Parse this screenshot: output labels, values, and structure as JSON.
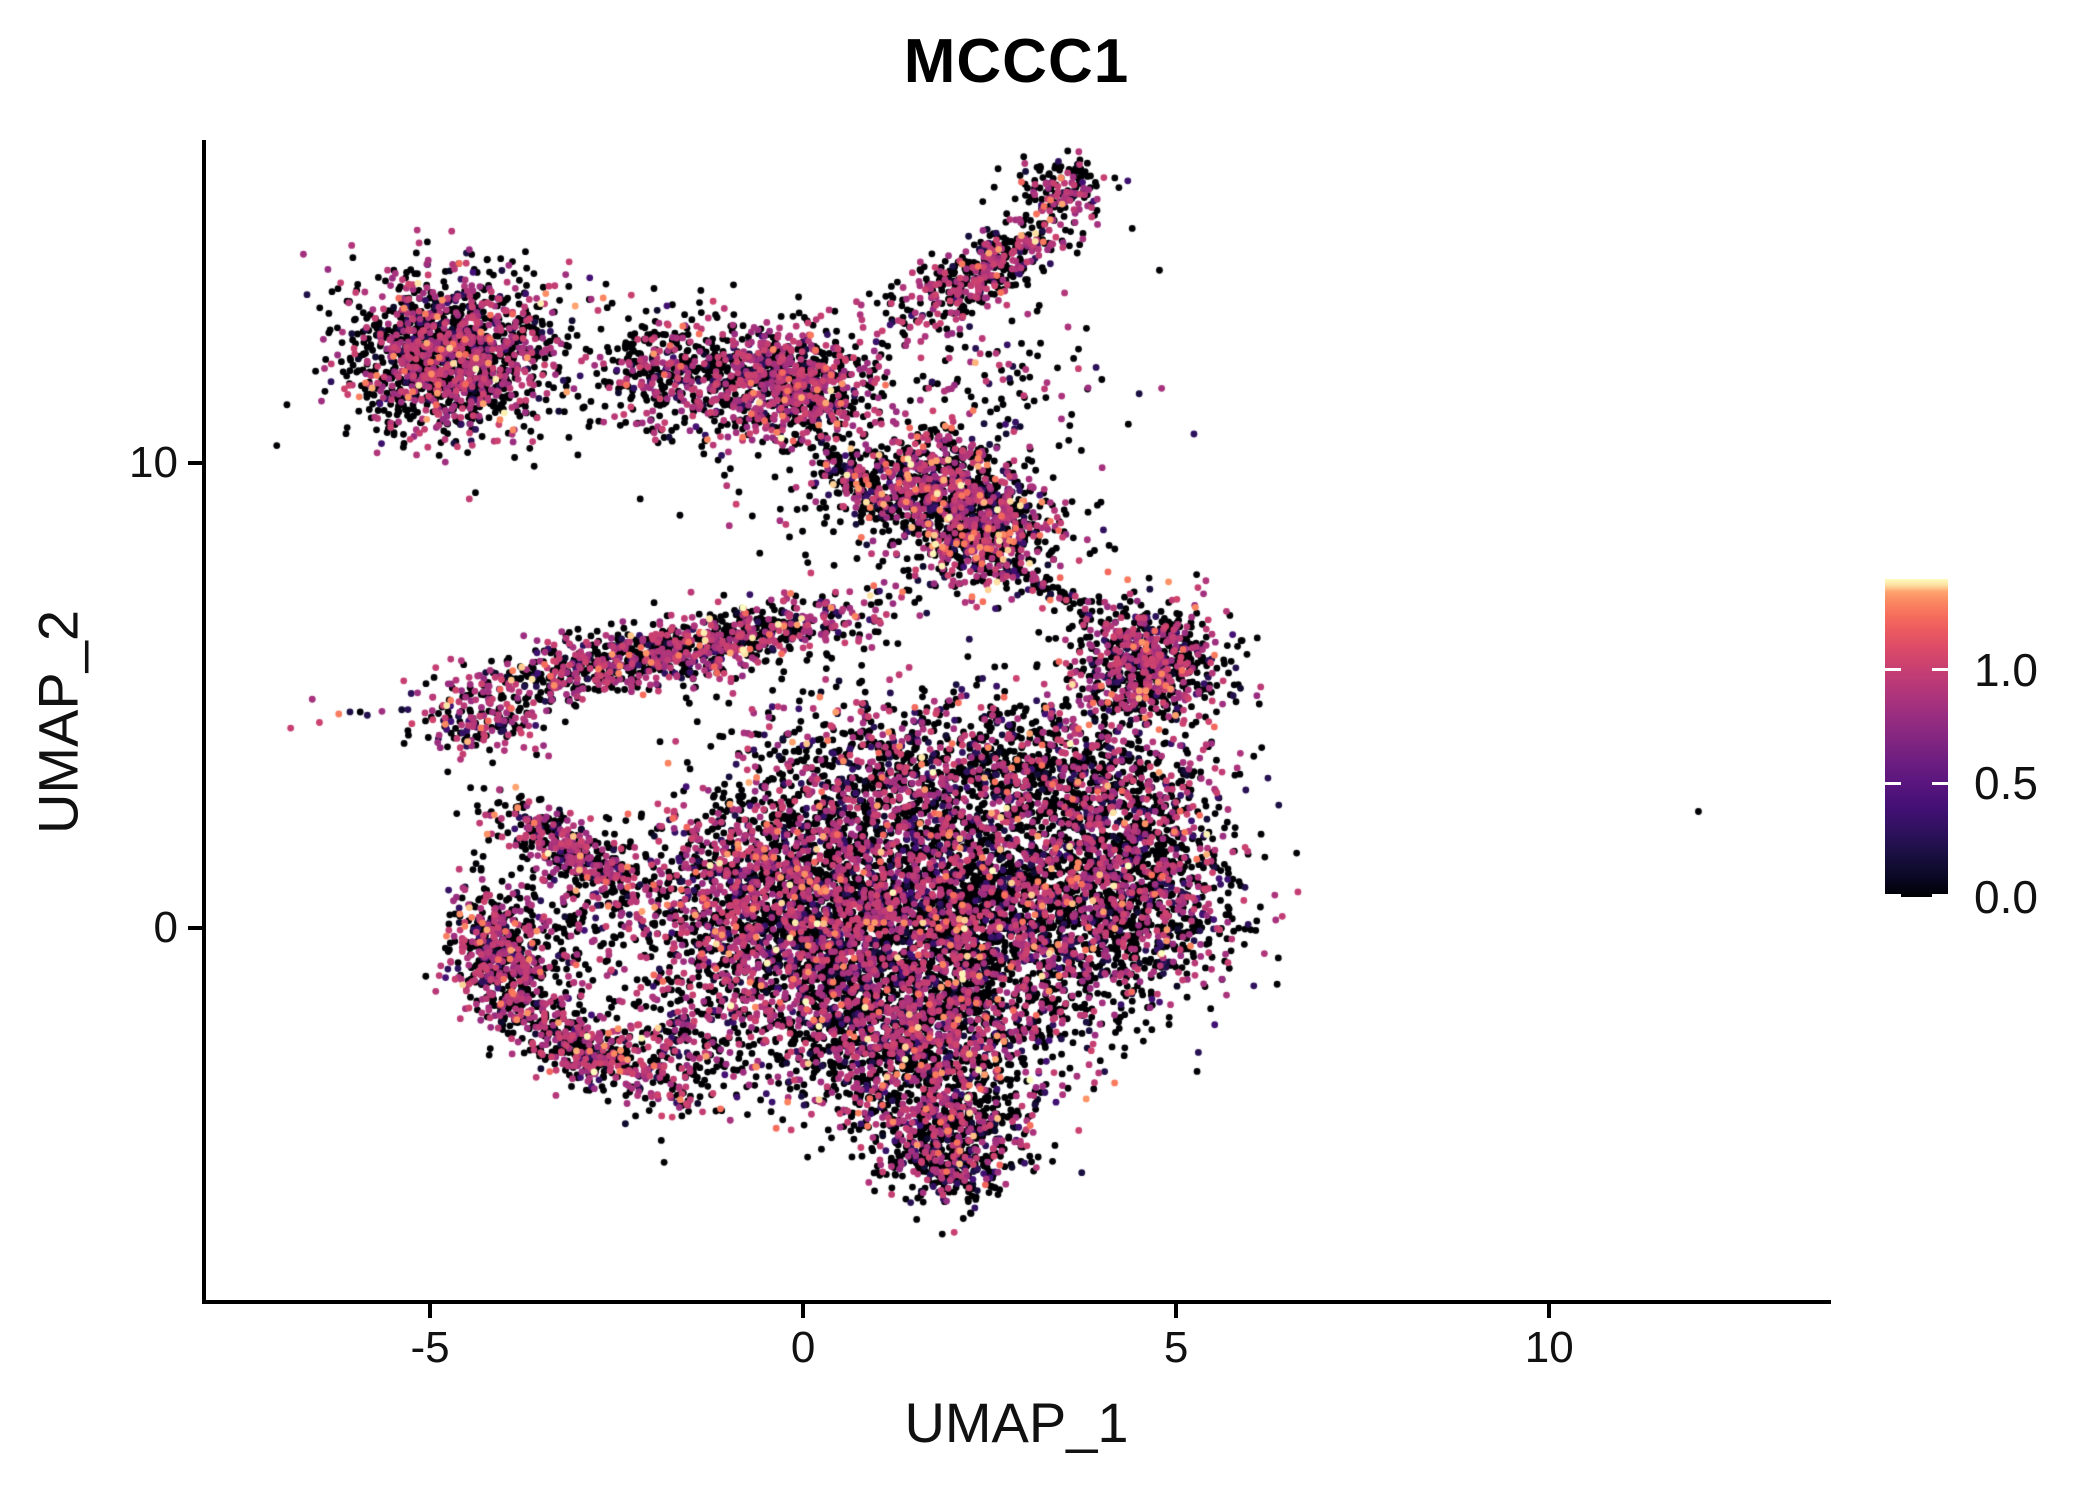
{
  "title": "MCCC1",
  "axes": {
    "x_label": "UMAP_1",
    "y_label": "UMAP_2",
    "x_tick_labels": [
      "-5",
      "0",
      "5",
      "10"
    ],
    "y_tick_labels": [
      "0",
      "10"
    ]
  },
  "legend": {
    "tick_labels": [
      "1.0",
      "0.5",
      "0.0"
    ],
    "tick_values": [
      1.0,
      0.5,
      0.0
    ],
    "vmax": 1.4,
    "gradient_stops": [
      [
        0.0,
        "#000004"
      ],
      [
        0.07,
        "#0B0927"
      ],
      [
        0.14,
        "#1C1044"
      ],
      [
        0.21,
        "#30115F"
      ],
      [
        0.29,
        "#451077"
      ],
      [
        0.36,
        "#5A167E"
      ],
      [
        0.43,
        "#6E1E81"
      ],
      [
        0.5,
        "#842681"
      ],
      [
        0.57,
        "#992D80"
      ],
      [
        0.64,
        "#B0357B"
      ],
      [
        0.71,
        "#C53E72"
      ],
      [
        0.78,
        "#DB4A68"
      ],
      [
        0.84,
        "#EC5B5F"
      ],
      [
        0.89,
        "#F7705C"
      ],
      [
        0.93,
        "#FB8861"
      ],
      [
        0.96,
        "#FEA36F"
      ],
      [
        0.98,
        "#FDDEA0"
      ],
      [
        1.0,
        "#FCFDBF"
      ]
    ]
  },
  "chart_data": {
    "type": "scatter",
    "title": "MCCC1",
    "xlabel": "UMAP_1",
    "ylabel": "UMAP_2",
    "xlim": [
      -8.03,
      13.75
    ],
    "ylim": [
      -8.05,
      16.9
    ],
    "x_ticks": [
      -5,
      0,
      5,
      10
    ],
    "y_ticks": [
      0,
      10
    ],
    "legend_position": "right",
    "grid": false,
    "point_radius_px": 3.4,
    "seed": 1337,
    "color_scale": {
      "vmin": 0.0,
      "vmax": 1.4,
      "scheme": "magma"
    },
    "clusters": [
      {
        "name": "topleft-blob",
        "shape": "gauss",
        "cx": -4.66,
        "cy": 12.32,
        "sx": 0.72,
        "sy": 0.85,
        "angle": 0,
        "n": 1600,
        "w": [
          0.62,
          0.345,
          0.03,
          0.005
        ]
      },
      {
        "name": "topleft-bridge",
        "shape": "gauss",
        "cx": -1.73,
        "cy": 11.95,
        "sx": 0.52,
        "sy": 0.62,
        "angle": 0,
        "n": 420,
        "w": [
          0.65,
          0.32,
          0.025,
          0.005
        ]
      },
      {
        "name": "top-mid-blob",
        "shape": "gauss",
        "cx": -0.18,
        "cy": 11.7,
        "sx": 0.58,
        "sy": 0.66,
        "angle": 0,
        "n": 900,
        "w": [
          0.56,
          0.4,
          0.035,
          0.005
        ]
      },
      {
        "name": "top-mid-tail",
        "shape": "strip",
        "cx": 0.8,
        "cy": 9.5,
        "sx": 0.55,
        "sy": 0.22,
        "angle": -55,
        "n": 170,
        "w": [
          0.72,
          0.255,
          0.02,
          0.005
        ]
      },
      {
        "name": "topright-strip",
        "shape": "strip",
        "cx": 2.4,
        "cy": 14.1,
        "sx": 0.85,
        "sy": 0.28,
        "angle": 46,
        "n": 480,
        "w": [
          0.62,
          0.34,
          0.035,
          0.005
        ]
      },
      {
        "name": "topright-tip",
        "shape": "gauss",
        "cx": 3.45,
        "cy": 15.9,
        "sx": 0.33,
        "sy": 0.3,
        "angle": 0,
        "n": 140,
        "w": [
          0.62,
          0.34,
          0.035,
          0.005
        ]
      },
      {
        "name": "ring-upper",
        "shape": "gauss",
        "cx": 1.75,
        "cy": 9.7,
        "sx": 0.5,
        "sy": 0.55,
        "angle": 0,
        "n": 550,
        "w": [
          0.58,
          0.34,
          0.06,
          0.02
        ]
      },
      {
        "name": "ring-lower",
        "shape": "gauss",
        "cx": 2.4,
        "cy": 8.5,
        "sx": 0.55,
        "sy": 0.62,
        "angle": 0,
        "n": 700,
        "w": [
          0.58,
          0.34,
          0.06,
          0.02
        ]
      },
      {
        "name": "ring-line",
        "shape": "strip",
        "cx": 3.25,
        "cy": 7.3,
        "sx": 0.5,
        "sy": 0.1,
        "angle": -40,
        "n": 70,
        "w": [
          0.8,
          0.18,
          0.02,
          0
        ]
      },
      {
        "name": "right-mid-blob",
        "shape": "gauss",
        "cx": 4.55,
        "cy": 5.7,
        "sx": 0.52,
        "sy": 0.68,
        "angle": 0,
        "n": 800,
        "w": [
          0.62,
          0.34,
          0.035,
          0.005
        ]
      },
      {
        "name": "left-band",
        "shape": "strip",
        "cx": -1.9,
        "cy": 5.9,
        "sx": 1.55,
        "sy": 0.33,
        "angle": 17,
        "n": 1100,
        "w": [
          0.56,
          0.4,
          0.035,
          0.005
        ]
      },
      {
        "name": "left-band-tail",
        "shape": "gauss",
        "cx": -4.3,
        "cy": 4.35,
        "sx": 0.45,
        "sy": 0.35,
        "angle": 0,
        "n": 150,
        "w": [
          0.56,
          0.4,
          0.035,
          0.005
        ]
      },
      {
        "name": "central-left",
        "shape": "gauss",
        "cx": -0.55,
        "cy": 0.6,
        "sx": 0.85,
        "sy": 1.25,
        "angle": 0,
        "n": 1500,
        "w": [
          0.6,
          0.365,
          0.03,
          0.005
        ]
      },
      {
        "name": "central-core",
        "shape": "gauss",
        "cx": 1.1,
        "cy": 0.0,
        "sx": 1.0,
        "sy": 1.4,
        "angle": 0,
        "n": 2000,
        "w": [
          0.7,
          0.27,
          0.025,
          0.005
        ]
      },
      {
        "name": "central-right",
        "shape": "gauss",
        "cx": 2.9,
        "cy": 0.2,
        "sx": 1.05,
        "sy": 1.3,
        "angle": 0,
        "n": 1700,
        "w": [
          0.73,
          0.24,
          0.025,
          0.005
        ]
      },
      {
        "name": "central-right-lobe",
        "shape": "gauss",
        "cx": 4.55,
        "cy": 0.9,
        "sx": 0.7,
        "sy": 1.1,
        "angle": 0,
        "n": 900,
        "w": [
          0.66,
          0.31,
          0.025,
          0.005
        ]
      },
      {
        "name": "central-top",
        "shape": "gauss",
        "cx": 1.4,
        "cy": 3.3,
        "sx": 1.2,
        "sy": 0.95,
        "angle": 0,
        "n": 1000,
        "w": [
          0.7,
          0.275,
          0.02,
          0.005
        ]
      },
      {
        "name": "central-topright",
        "shape": "gauss",
        "cx": 3.7,
        "cy": 3.1,
        "sx": 0.85,
        "sy": 0.85,
        "angle": 0,
        "n": 700,
        "w": [
          0.68,
          0.29,
          0.025,
          0.005
        ]
      },
      {
        "name": "central-bottom",
        "shape": "gauss",
        "cx": 1.4,
        "cy": -2.4,
        "sx": 1.0,
        "sy": 0.85,
        "angle": 0,
        "n": 1300,
        "w": [
          0.65,
          0.31,
          0.03,
          0.01
        ]
      },
      {
        "name": "bottom-v",
        "shape": "gauss",
        "cx": 1.9,
        "cy": -4.3,
        "sx": 0.6,
        "sy": 0.55,
        "angle": 0,
        "n": 550,
        "w": [
          0.66,
          0.31,
          0.025,
          0.005
        ]
      },
      {
        "name": "bottom-tip",
        "shape": "gauss",
        "cx": 2.0,
        "cy": -5.3,
        "sx": 0.33,
        "sy": 0.4,
        "angle": 0,
        "n": 180,
        "w": [
          0.72,
          0.255,
          0.02,
          0.005
        ]
      },
      {
        "name": "central-leftspur",
        "shape": "gauss",
        "cx": -1.6,
        "cy": -2.5,
        "sx": 0.5,
        "sy": 0.7,
        "angle": 0,
        "n": 300,
        "w": [
          0.64,
          0.33,
          0.025,
          0.005
        ]
      },
      {
        "name": "arc-top",
        "shape": "strip",
        "cx": -3.1,
        "cy": 1.6,
        "sx": 0.8,
        "sy": 0.28,
        "angle": -48,
        "n": 420,
        "w": [
          0.56,
          0.4,
          0.035,
          0.005
        ]
      },
      {
        "name": "arc-left",
        "shape": "strip",
        "cx": -4.05,
        "cy": -0.7,
        "sx": 0.75,
        "sy": 0.3,
        "angle": -82,
        "n": 500,
        "w": [
          0.56,
          0.4,
          0.035,
          0.005
        ]
      },
      {
        "name": "arc-bottom",
        "shape": "strip",
        "cx": -3.0,
        "cy": -2.6,
        "sx": 0.8,
        "sy": 0.3,
        "angle": -44,
        "n": 420,
        "w": [
          0.56,
          0.4,
          0.035,
          0.005
        ]
      },
      {
        "name": "arc-fill",
        "shape": "gauss",
        "cx": -3.2,
        "cy": -0.4,
        "sx": 0.55,
        "sy": 0.95,
        "angle": 0,
        "n": 240,
        "w": [
          0.72,
          0.255,
          0.02,
          0
        ]
      },
      {
        "name": "sparse-ring-left",
        "shape": "gauss",
        "cx": 0.35,
        "cy": 9.2,
        "sx": 0.85,
        "sy": 0.95,
        "angle": 0,
        "n": 110,
        "w": [
          0.72,
          0.255,
          0.02,
          0
        ]
      },
      {
        "name": "sparse-top-gap",
        "shape": "gauss",
        "cx": 2.7,
        "cy": 12.0,
        "sx": 0.85,
        "sy": 0.85,
        "angle": 0,
        "n": 120,
        "w": [
          0.72,
          0.255,
          0.02,
          0
        ]
      }
    ],
    "outliers": [
      {
        "x": 12.0,
        "y": 2.5,
        "v": 0
      }
    ]
  }
}
